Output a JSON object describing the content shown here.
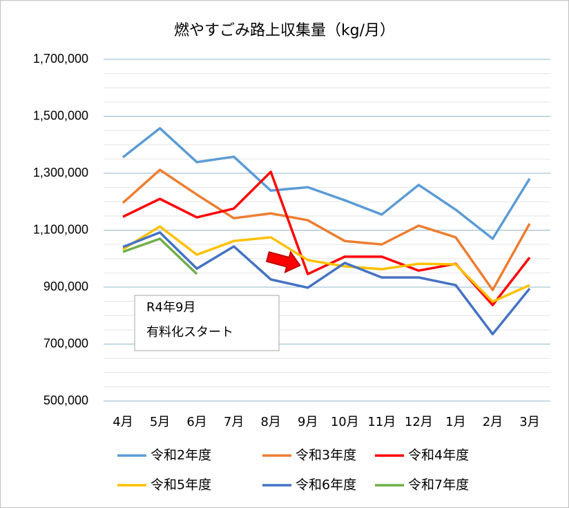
{
  "chart_data": {
    "type": "line",
    "title": "燃やすごみ路上収集量（kg/月）",
    "categories": [
      "4月",
      "5月",
      "6月",
      "7月",
      "8月",
      "9月",
      "10月",
      "11月",
      "12月",
      "1月",
      "2月",
      "3月"
    ],
    "series": [
      {
        "name": "令和2年度",
        "color": "#5b9bd5",
        "values": [
          1356000,
          1458000,
          1339000,
          1358000,
          1239000,
          1251000,
          1205000,
          1155000,
          1259000,
          1172000,
          1070000,
          1281000
        ]
      },
      {
        "name": "令和3年度",
        "color": "#ed7d31",
        "values": [
          1196000,
          1312000,
          1225000,
          1142000,
          1159000,
          1135000,
          1062000,
          1050000,
          1116000,
          1075000,
          890000,
          1123000
        ]
      },
      {
        "name": "令和4年度",
        "color": "#ff0000",
        "values": [
          1147000,
          1210000,
          1145000,
          1176000,
          1305000,
          946000,
          1007000,
          1007000,
          958000,
          982000,
          837000,
          1004000
        ]
      },
      {
        "name": "令和5年度",
        "color": "#ffc000",
        "values": [
          1033000,
          1113000,
          1014000,
          1062000,
          1075000,
          995000,
          973000,
          963000,
          982000,
          980000,
          849000,
          907000
        ]
      },
      {
        "name": "令和6年度",
        "color": "#4472c4",
        "values": [
          1041000,
          1092000,
          965000,
          1043000,
          927000,
          898000,
          985000,
          934000,
          934000,
          907000,
          735000,
          895000
        ]
      },
      {
        "name": "令和7年度",
        "color": "#70ad47",
        "values": [
          1024000,
          1070000,
          946000,
          null,
          null,
          null,
          null,
          null,
          null,
          null,
          null,
          null
        ]
      }
    ],
    "ylim": [
      500000,
      1700000
    ],
    "yticks": [
      {
        "value": 500000,
        "label": "500,000"
      },
      {
        "value": 700000,
        "label": "700,000"
      },
      {
        "value": 900000,
        "label": "900,000"
      },
      {
        "value": 1100000,
        "label": "1,100,000"
      },
      {
        "value": 1300000,
        "label": "1,300,000"
      },
      {
        "value": 1500000,
        "label": "1,500,000"
      },
      {
        "value": 1700000,
        "label": "1,700,000"
      }
    ],
    "minor_yticks": [
      550000,
      600000,
      650000,
      750000,
      800000,
      850000,
      950000,
      1000000,
      1050000,
      1150000,
      1200000,
      1250000,
      1350000,
      1400000,
      1450000,
      1550000,
      1600000,
      1650000
    ],
    "grid": true,
    "annotation": [
      "R4年9月",
      "有料化スタート"
    ],
    "legend": "bottom"
  }
}
